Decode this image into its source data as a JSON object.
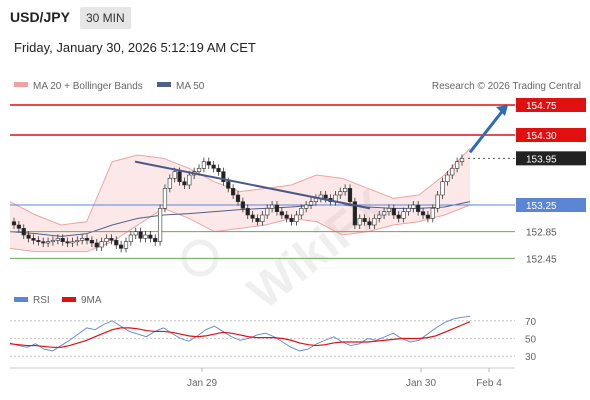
{
  "header": {
    "symbol": "USD/JPY",
    "timeframe": "30 MIN",
    "timestamp": "Friday, January 30, 2026 5:12:19 AM CET"
  },
  "legend": {
    "ma20": "MA 20 + Bollinger Bands",
    "ma50": "MA 50",
    "credit": "Research © 2026 Trading Central"
  },
  "watermark": "WikiFX",
  "colors": {
    "resistance": "#e01010",
    "support": "#6aaa55",
    "pivot": "#5b86d6",
    "current": "#333333",
    "trendline": "#4a5a86",
    "ma50": "#4f5f8a",
    "bollinger": "#f2a2a2",
    "candle_up": "#555555",
    "candle_down": "#222222",
    "arrow": "#2e6bb5",
    "rsi": "#5b86d6",
    "rsi_ma": "#e01010"
  },
  "chart_data": [
    {
      "type": "candlestick",
      "ylim": [
        152.2,
        154.9
      ],
      "xlabels": [
        "Jan 29",
        "Jan 30",
        "Feb 4"
      ],
      "levels": [
        {
          "name": "resistance-2",
          "value": 154.75,
          "label": "154.75",
          "style": "resistance"
        },
        {
          "name": "resistance-1",
          "value": 154.3,
          "label": "154.30",
          "style": "resistance"
        },
        {
          "name": "current-price",
          "value": 153.95,
          "label": "153.95",
          "style": "current"
        },
        {
          "name": "pivot",
          "value": 153.25,
          "label": "153.25",
          "style": "pivot"
        },
        {
          "name": "support-1",
          "value": 152.85,
          "label": "152.85",
          "style": "support"
        },
        {
          "name": "support-2",
          "value": 152.45,
          "label": "152.45",
          "style": "support"
        }
      ],
      "candles": [
        152.95,
        152.9,
        152.8,
        152.75,
        152.72,
        152.7,
        152.68,
        152.7,
        152.72,
        152.75,
        152.7,
        152.68,
        152.7,
        152.72,
        152.75,
        152.72,
        152.68,
        152.62,
        152.7,
        152.75,
        152.72,
        152.65,
        152.6,
        152.7,
        152.8,
        152.85,
        152.75,
        152.8,
        152.75,
        152.7,
        153.2,
        153.5,
        153.65,
        153.75,
        153.6,
        153.55,
        153.7,
        153.75,
        153.8,
        153.9,
        153.85,
        153.8,
        153.75,
        153.6,
        153.5,
        153.4,
        153.3,
        153.2,
        153.1,
        153.05,
        153.0,
        153.1,
        153.2,
        153.25,
        153.15,
        153.1,
        153.05,
        153.0,
        153.1,
        153.2,
        153.25,
        153.3,
        153.35,
        153.4,
        153.35,
        153.3,
        153.4,
        153.45,
        153.5,
        153.3,
        152.95,
        153.05,
        153.0,
        152.95,
        153.05,
        153.1,
        153.15,
        153.2,
        153.1,
        153.05,
        153.15,
        153.2,
        153.25,
        153.15,
        153.1,
        153.05,
        153.2,
        153.4,
        153.6,
        153.7,
        153.8,
        153.9,
        153.95
      ],
      "trendline": [
        [
          0.25,
          153.9
        ],
        [
          0.72,
          153.2
        ]
      ],
      "ma50": [
        152.85,
        152.82,
        152.78,
        152.82,
        152.95,
        153.05,
        153.1,
        153.12,
        153.15,
        153.18,
        153.2,
        153.22,
        153.25,
        153.25,
        153.22,
        153.2,
        153.2,
        153.22,
        153.3
      ],
      "bollinger_upper": [
        153.3,
        153.1,
        152.95,
        153.0,
        153.9,
        154.0,
        153.95,
        153.8,
        153.6,
        153.45,
        153.5,
        153.55,
        153.7,
        153.65,
        153.5,
        153.35,
        153.4,
        153.7,
        154.1
      ],
      "bollinger_lower": [
        152.6,
        152.55,
        152.55,
        152.55,
        152.7,
        152.95,
        153.2,
        153.05,
        152.85,
        152.9,
        152.95,
        153.05,
        153.0,
        152.8,
        152.85,
        152.95,
        153.0,
        153.1,
        153.25
      ],
      "target_arrow": {
        "from": 153.95,
        "to": 154.75
      }
    },
    {
      "type": "line",
      "title": "RSI",
      "series": [
        {
          "name": "RSI",
          "values": [
            45,
            42,
            40,
            44,
            38,
            36,
            42,
            48,
            55,
            62,
            60,
            66,
            70,
            64,
            58,
            55,
            52,
            58,
            62,
            56,
            50,
            47,
            53,
            60,
            64,
            58,
            52,
            48,
            50,
            54,
            56,
            52,
            46,
            40,
            36,
            38,
            44,
            48,
            52,
            46,
            42,
            44,
            50,
            48,
            52,
            56,
            50,
            46,
            48,
            55,
            62,
            68,
            72,
            74,
            75
          ]
        },
        {
          "name": "9MA",
          "values": [
            44,
            43,
            42,
            42,
            41,
            40,
            40,
            42,
            45,
            48,
            52,
            56,
            60,
            62,
            62,
            61,
            59,
            58,
            58,
            57,
            55,
            53,
            52,
            53,
            55,
            57,
            56,
            54,
            52,
            51,
            51,
            51,
            50,
            48,
            45,
            43,
            42,
            43,
            45,
            46,
            46,
            46,
            46,
            47,
            48,
            49,
            50,
            50,
            50,
            51,
            53,
            57,
            61,
            65,
            69
          ]
        }
      ],
      "ylim": [
        20,
        80
      ],
      "yticks": [
        30,
        50,
        70
      ]
    }
  ]
}
